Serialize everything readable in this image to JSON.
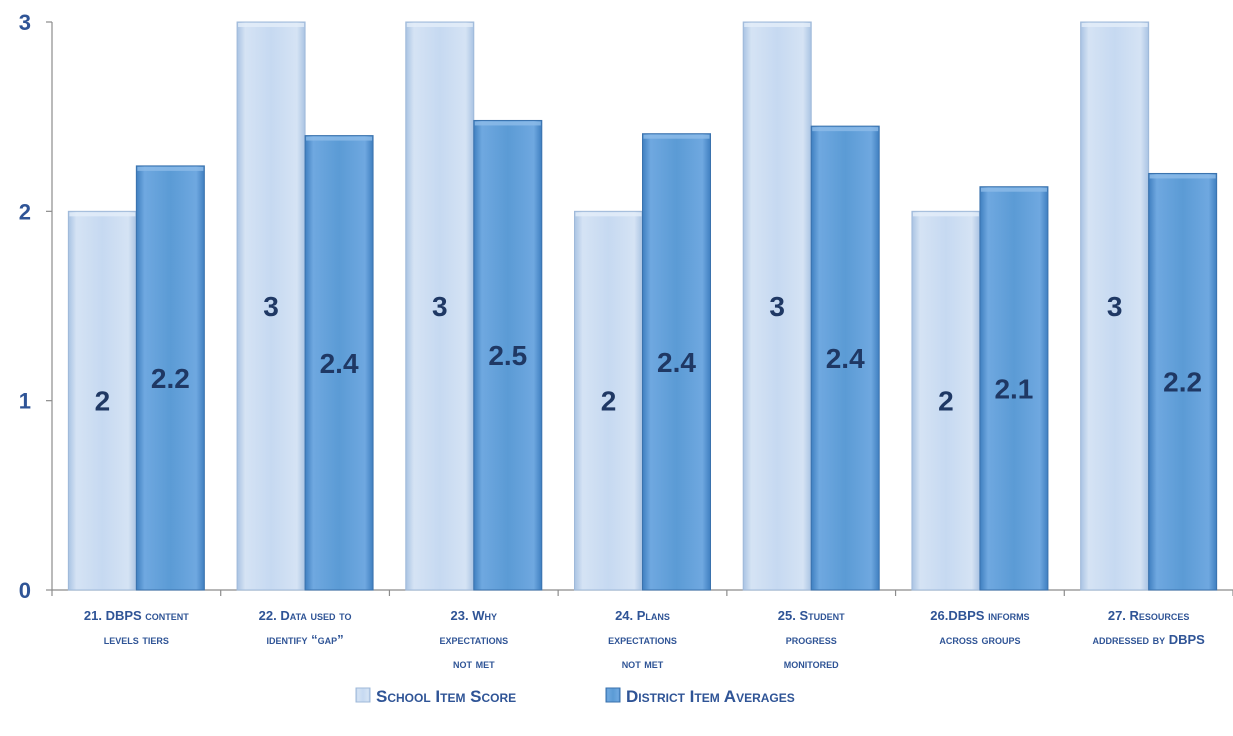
{
  "chart_data": {
    "type": "bar",
    "categories": [
      [
        "21.  DBPS content",
        "levels tiers"
      ],
      [
        "22. Data used to",
        "identify “gap”"
      ],
      [
        "23. Why",
        "expectations",
        "not met"
      ],
      [
        "24. Plans",
        "expectations",
        "not met"
      ],
      [
        "25. Student",
        "progress",
        "monitored"
      ],
      [
        "26.DBPS informs",
        "across groups"
      ],
      [
        "27. Resources",
        "addressed by DBPS"
      ]
    ],
    "series": [
      {
        "name": "School Item Score",
        "values": [
          2,
          3,
          3,
          2,
          3,
          2,
          3
        ],
        "labels": [
          "2",
          "3",
          "3",
          "2",
          "3",
          "2",
          "3"
        ],
        "color": "#c6d9f1"
      },
      {
        "name": "District Item Averages",
        "values": [
          2.24,
          2.4,
          2.48,
          2.41,
          2.45,
          2.13,
          2.2
        ],
        "labels": [
          "2.2",
          "2.4",
          "2.5",
          "2.4",
          "2.4",
          "2.1",
          "2.2"
        ],
        "color": "#5b9bd5"
      }
    ],
    "ylim": [
      0,
      3
    ],
    "yticks": [
      "0",
      "1",
      "2",
      "3"
    ],
    "legend_position": "bottom",
    "grid": false
  }
}
